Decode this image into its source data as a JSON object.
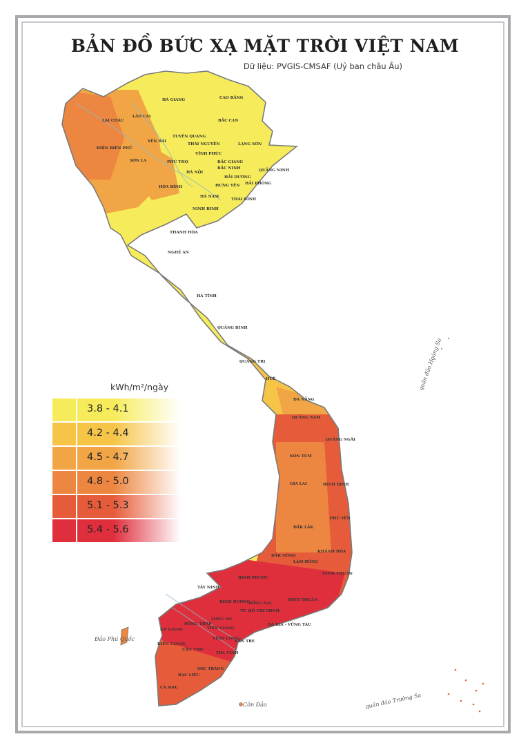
{
  "title": "BẢN ĐỒ BỨC XẠ MẶT TRỜI VIỆT NAM",
  "subtitle": "Dữ liệu: PVGIS-CMSAF (Uỷ ban châu Âu)",
  "legend": {
    "unit": "kWh/m²/ngày",
    "items": [
      {
        "label": "3.8 - 4.1",
        "color": "#f6ec5b"
      },
      {
        "label": "4.2 - 4.4",
        "color": "#f6c548"
      },
      {
        "label": "4.5 - 4.7",
        "color": "#f2a545"
      },
      {
        "label": "4.8 - 5.0",
        "color": "#ec8640"
      },
      {
        "label": "5.1 - 5.3",
        "color": "#e65c3a"
      },
      {
        "label": "5.4 - 5.6",
        "color": "#df2f3c"
      }
    ]
  },
  "provinces": [
    "HÀ GIANG",
    "CAO BẰNG",
    "LAI CHÂU",
    "LÀO CAI",
    "BẮC CẠN",
    "TUYÊN QUANG",
    "THÁI NGUYÊN",
    "YÊN BÁI",
    "LẠNG SƠN",
    "ĐIỆN BIÊN PHỦ",
    "VĨNH PHÚC",
    "SƠN LA",
    "PHÚ THỌ",
    "BẮC GIANG",
    "HÀ NỘI",
    "BẮC NINH",
    "QUẢNG NINH",
    "HẢI DƯƠNG",
    "HÒA BÌNH",
    "HƯNG YÊN",
    "HẢI PHÒNG",
    "HÀ NAM",
    "THÁI BÌNH",
    "NINH BÌNH",
    "THANH HÓA",
    "NGHỆ AN",
    "HÀ TĨNH",
    "QUẢNG BÌNH",
    "QUẢNG TRỊ",
    "HUẾ",
    "ĐÀ NẴNG",
    "QUẢNG NAM",
    "QUẢNG NGÃI",
    "KON TUM",
    "GIA LAI",
    "BÌNH ĐỊNH",
    "PHÚ YÊN",
    "ĐẮK LẮK",
    "ĐẮK NÔNG",
    "KHÁNH HÒA",
    "LÂM ĐỒNG",
    "NINH THUẬN",
    "BÌNH PHƯỚC",
    "TÂY NINH",
    "BÌNH DƯƠNG",
    "ĐỒNG NAI",
    "BÌNH THUẬN",
    "TP. HỒ CHÍ MINH",
    "LONG AN",
    "BÀ RỊA - VŨNG TÀU",
    "AN GIANG",
    "ĐỒNG THÁP",
    "TIỀN GIANG",
    "KIÊN GIANG",
    "VĨNH LONG",
    "BẾN TRE",
    "CẦN THƠ",
    "TRÀ VINH",
    "SÓC TRĂNG",
    "BẠC LIÊU",
    "CÀ MAU"
  ],
  "islands": {
    "phu_quoc": "Đảo Phú Quốc",
    "con_dao": "Côn Đảo",
    "hoang_sa": "quần đảo Hoàng Sa",
    "truong_sa": "quần đảo Trường Sa"
  }
}
